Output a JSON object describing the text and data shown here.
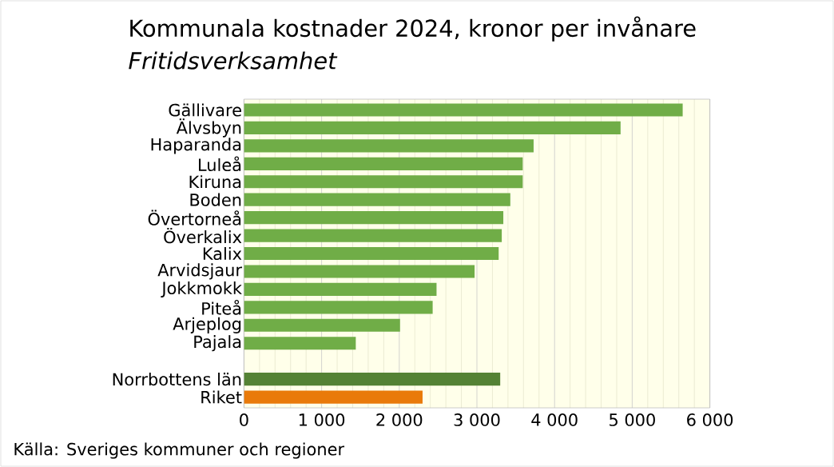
{
  "chart_data": {
    "type": "bar",
    "orientation": "horizontal",
    "title": "Kommunala kostnader 2024, kronor per invånare",
    "subtitle": "*Fritidsverksamhet*",
    "categories": [
      "Gällivare",
      "Älvsbyn",
      "Haparanda",
      "Luleå",
      "Kiruna",
      "Boden",
      "Övertorneå",
      "Överkalix",
      "Kalix",
      "Arvidsjaur",
      "Jokkmokk",
      "Piteå",
      "Arjeplog",
      "Pajala",
      null,
      "Norrbottens län",
      "Riket"
    ],
    "values": [
      5650,
      4850,
      3730,
      3590,
      3590,
      3430,
      3340,
      3320,
      3280,
      2970,
      2480,
      2430,
      2010,
      1440,
      null,
      3300,
      2300
    ],
    "colors": [
      "#70ad47",
      "#70ad47",
      "#70ad47",
      "#70ad47",
      "#70ad47",
      "#70ad47",
      "#70ad47",
      "#70ad47",
      "#70ad47",
      "#70ad47",
      "#70ad47",
      "#70ad47",
      "#70ad47",
      "#70ad47",
      null,
      "#548235",
      "#e97a0a"
    ],
    "xlim": [
      0,
      6000
    ],
    "xticks": [
      0,
      {
        "value": 1000,
        "label": "1 000"
      },
      {
        "value": 2000,
        "label": "2 000"
      },
      {
        "value": 3000,
        "label": "3 000"
      },
      {
        "value": 4000,
        "label": "4 000"
      },
      {
        "value": 5000,
        "label": "5 000"
      },
      {
        "value": 6000,
        "label": "6 000"
      }
    ],
    "grid": "x",
    "annotations": [
      "Källa: Sveriges kommuner och regioner"
    ]
  }
}
